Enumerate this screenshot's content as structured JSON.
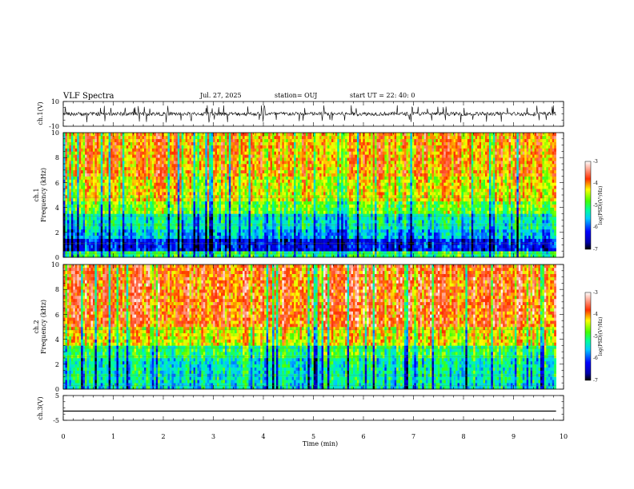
{
  "header": {
    "title": "VLF Spectra",
    "date": "Jul. 27, 2025",
    "station": "station= OUJ",
    "start_ut": "start UT =  22: 40: 0"
  },
  "chart_data": [
    {
      "type": "line",
      "name": "ch1-waveform",
      "ylabel": "ch.1(V)",
      "xlim": [
        0,
        10
      ],
      "ylim": [
        -10,
        10
      ],
      "ytick_labels": [
        "10",
        "-10"
      ],
      "data_end_min": 9.85,
      "baseline_v": 0,
      "noise_amplitude_v": 3,
      "spike_amplitude_v": 7
    },
    {
      "type": "heatmap",
      "name": "ch1-spectrogram",
      "ylabel_line1": "ch.1",
      "ylabel_line2": "Frequency (kHz)",
      "xlim": [
        0,
        10
      ],
      "ylim": [
        0,
        10
      ],
      "ytick_labels": [
        "0",
        "2",
        "4",
        "6",
        "8",
        "10"
      ],
      "data_end_min": 9.85,
      "bands_khz": [
        {
          "from": 0,
          "to": 0.5,
          "level": -5.0
        },
        {
          "from": 0.5,
          "to": 1.6,
          "level": -6.2
        },
        {
          "from": 1.6,
          "to": 2.2,
          "level": -5.6
        },
        {
          "from": 2.2,
          "to": 3.4,
          "level": -5.3
        },
        {
          "from": 3.4,
          "to": 4.6,
          "level": -4.7
        },
        {
          "from": 4.6,
          "to": 6.5,
          "level": -4.3
        },
        {
          "from": 6.5,
          "to": 10,
          "level": -4.0
        }
      ],
      "colorbar": {
        "label": "log(PSD)(V²/Hz)",
        "min": -7,
        "max": -3,
        "tick_labels": [
          "-3",
          "-4",
          "-5",
          "-6",
          "-7"
        ]
      }
    },
    {
      "type": "heatmap",
      "name": "ch2-spectrogram",
      "ylabel_line1": "ch.2",
      "ylabel_line2": "Frequency (kHz)",
      "xlim": [
        0,
        10
      ],
      "ylim": [
        0,
        10
      ],
      "ytick_labels": [
        "0",
        "2",
        "4",
        "6",
        "8",
        "10"
      ],
      "data_end_min": 9.85,
      "bands_khz": [
        {
          "from": 0,
          "to": 0.6,
          "level": -5.4
        },
        {
          "from": 0.6,
          "to": 2.6,
          "level": -5.3
        },
        {
          "from": 2.6,
          "to": 3.6,
          "level": -5.0
        },
        {
          "from": 3.6,
          "to": 5.0,
          "level": -4.3
        },
        {
          "from": 5.0,
          "to": 10,
          "level": -3.8
        }
      ],
      "colorbar": {
        "label": "log(PSD)(V²/Hz)",
        "min": -7,
        "max": -3,
        "tick_labels": [
          "-3",
          "-4",
          "-5",
          "-6",
          "-7"
        ]
      }
    },
    {
      "type": "line",
      "name": "ch3-waveform",
      "ylabel": "ch.3(V)",
      "xlim": [
        0,
        10
      ],
      "ylim": [
        -5,
        5
      ],
      "ytick_labels": [
        "5",
        "-5"
      ],
      "data_end_min": 9.85,
      "baseline_v": -1.3
    }
  ],
  "x_axis": {
    "label": "Time (min)",
    "tick_labels": [
      "0",
      "1",
      "2",
      "3",
      "4",
      "5",
      "6",
      "7",
      "8",
      "9",
      "10"
    ]
  },
  "colorscale": [
    "#000000",
    "#0000aa",
    "#0000ff",
    "#00ccff",
    "#00ff99",
    "#44ff00",
    "#ffff00",
    "#ff3000",
    "#ffffff"
  ]
}
